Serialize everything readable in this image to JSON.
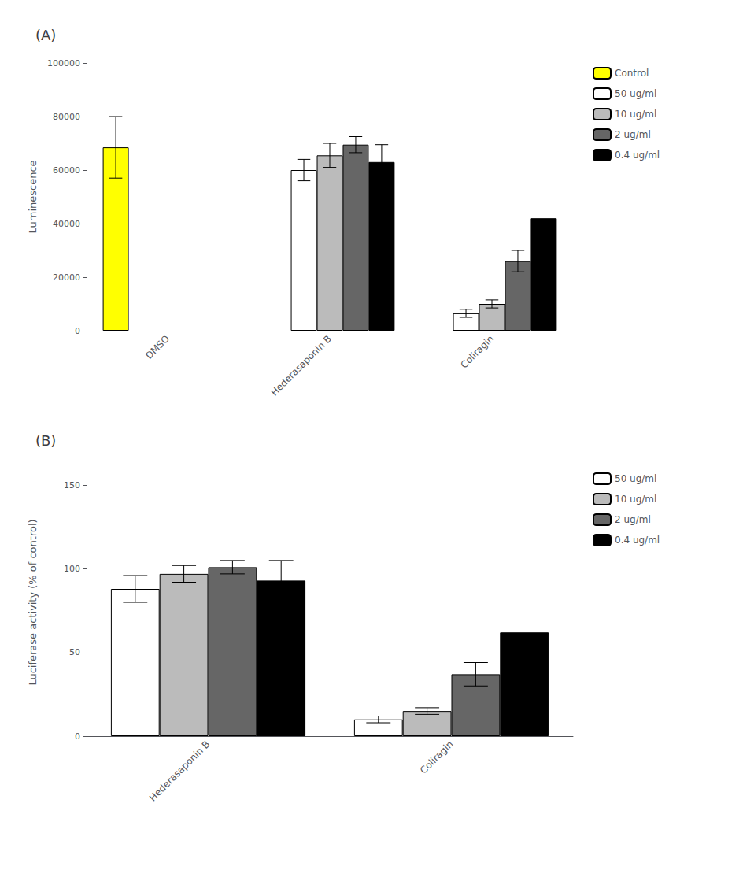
{
  "chart_data": [
    {
      "type": "bar",
      "title": "(A)",
      "ylabel": "Luminescence",
      "categories": [
        "DMSO",
        "Hederasaponin B",
        "Coliragin"
      ],
      "series": [
        {
          "name": "Control",
          "color": "#FFFF00",
          "values": [
            68500,
            null,
            null
          ],
          "errors": [
            11500,
            null,
            null
          ]
        },
        {
          "name": "50 ug/ml",
          "color": "#FFFFFF",
          "values": [
            null,
            60000,
            6500
          ],
          "errors": [
            null,
            4000,
            1500
          ]
        },
        {
          "name": "10 ug/ml",
          "color": "#BBBBBB",
          "values": [
            null,
            65500,
            10000
          ],
          "errors": [
            null,
            4500,
            1500
          ]
        },
        {
          "name": "2 ug/ml",
          "color": "#666666",
          "values": [
            null,
            69500,
            26000
          ],
          "errors": [
            null,
            3000,
            4000
          ]
        },
        {
          "name": "0.4 ug/ml",
          "color": "#000000",
          "values": [
            null,
            63000,
            42000
          ],
          "errors": [
            null,
            6500,
            0
          ]
        }
      ],
      "ylim": [
        0,
        100000
      ],
      "yticks": [
        0,
        20000,
        40000,
        60000,
        80000,
        100000
      ],
      "grid": false,
      "legend": "right"
    },
    {
      "type": "bar",
      "title": "(B)",
      "ylabel": "Luciferase activity (% of control)",
      "categories": [
        "Hederasaponin B",
        "Coliragin"
      ],
      "series": [
        {
          "name": "50 ug/ml",
          "color": "#FFFFFF",
          "values": [
            88,
            10
          ],
          "errors": [
            8,
            2
          ]
        },
        {
          "name": "10 ug/ml",
          "color": "#BBBBBB",
          "values": [
            97,
            15
          ],
          "errors": [
            5,
            2
          ]
        },
        {
          "name": "2 ug/ml",
          "color": "#666666",
          "values": [
            101,
            37
          ],
          "errors": [
            4,
            7
          ]
        },
        {
          "name": "0.4 ug/ml",
          "color": "#000000",
          "values": [
            93,
            62
          ],
          "errors": [
            12,
            0
          ]
        }
      ],
      "ylim": [
        0,
        160
      ],
      "yticks": [
        0,
        50,
        100,
        150
      ],
      "grid": false,
      "legend": "right"
    }
  ]
}
